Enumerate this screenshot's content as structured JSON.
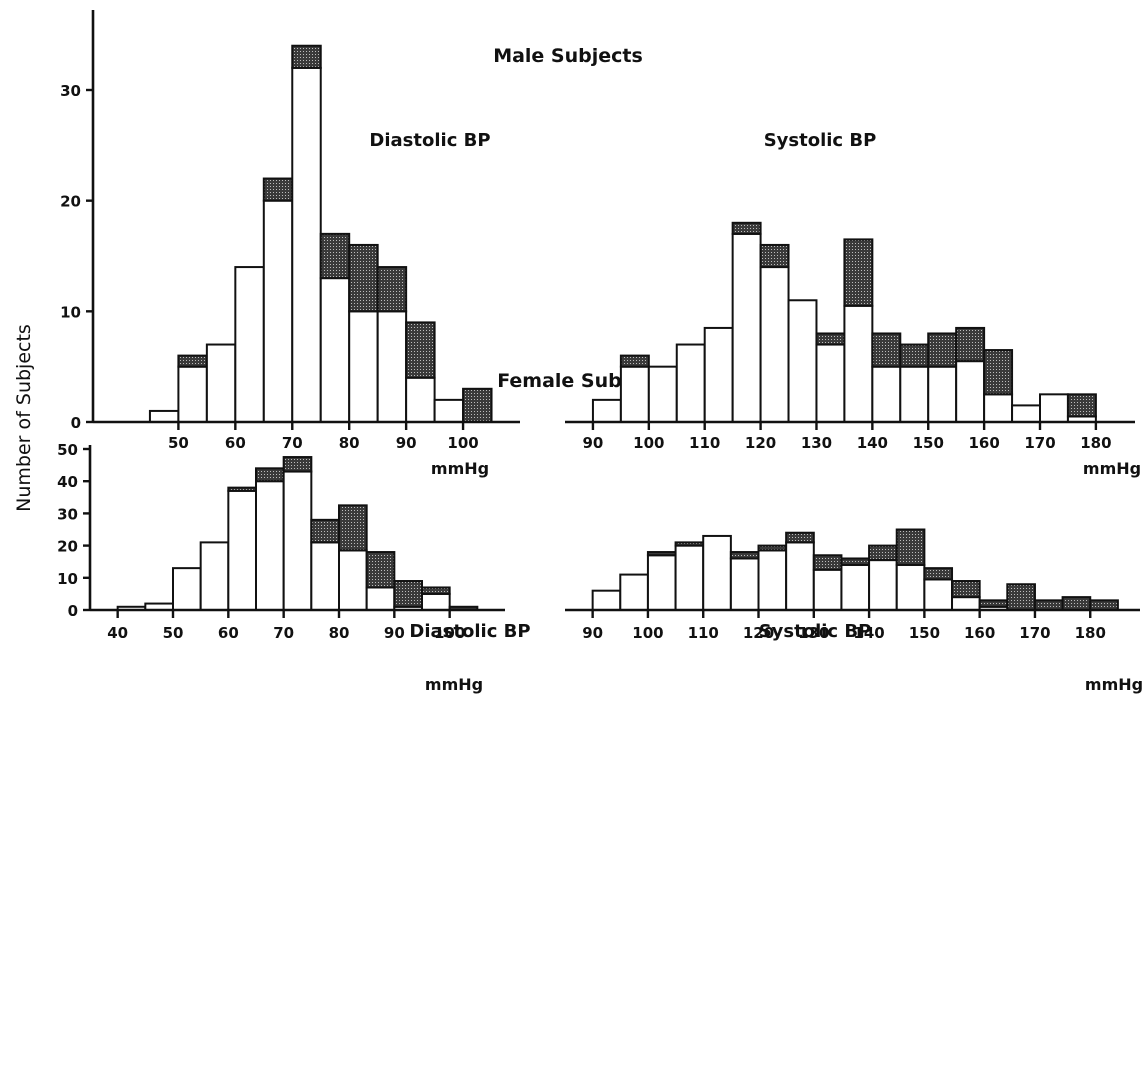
{
  "y_axis_label": "Number of Subjects",
  "colors": {
    "ink": "#111111",
    "bar_fill": "#ffffff",
    "shade": "#4a4a4a"
  },
  "chart_data": [
    {
      "type": "bar",
      "group_title": "Male Subjects",
      "title": "Diastolic BP",
      "xunit": "mmHg",
      "bin_width": 5,
      "xlim": [
        35,
        110
      ],
      "xticks": [
        50,
        60,
        70,
        80,
        90,
        100
      ],
      "ylim": [
        0,
        35
      ],
      "yticks": [
        0,
        10,
        20,
        30
      ],
      "bins": [
        45,
        50,
        55,
        60,
        65,
        70,
        75,
        80,
        85,
        90,
        95,
        100
      ],
      "white": [
        1,
        5,
        7,
        14,
        20,
        32,
        13,
        10,
        10,
        4,
        2,
        0
      ],
      "shaded": [
        0,
        1,
        0,
        0,
        2,
        2,
        4,
        6,
        4,
        5,
        0,
        3
      ]
    },
    {
      "type": "bar",
      "group_title": "Male Subjects",
      "title": "Systolic BP",
      "xunit": "mmHg",
      "bin_width": 5,
      "xlim": [
        85,
        187
      ],
      "xticks": [
        90,
        100,
        110,
        120,
        130,
        140,
        150,
        160,
        170,
        180
      ],
      "ylim": [
        0,
        35
      ],
      "yticks": [],
      "bins": [
        90,
        95,
        100,
        105,
        110,
        115,
        120,
        125,
        130,
        135,
        140,
        145,
        150,
        155,
        160,
        165,
        170,
        175
      ],
      "white": [
        2,
        5,
        5,
        7,
        8.5,
        17,
        14,
        11,
        7,
        10.5,
        5,
        5,
        5,
        5.5,
        2.5,
        1.5,
        2.5,
        0.5
      ],
      "shaded": [
        0,
        1,
        0,
        0,
        0,
        1,
        2,
        0,
        1,
        6,
        3,
        2,
        3,
        3,
        4,
        0,
        0,
        2
      ]
    },
    {
      "type": "bar",
      "group_title": "Female Subjects",
      "title": "Diastolic BP",
      "xunit": "mmHg",
      "bin_width": 5,
      "xlim": [
        35,
        110
      ],
      "xticks": [
        40,
        50,
        60,
        70,
        80,
        90,
        100
      ],
      "ylim": [
        0,
        50
      ],
      "yticks": [
        0,
        10,
        20,
        30,
        40,
        50
      ],
      "bins": [
        40,
        45,
        50,
        55,
        60,
        65,
        70,
        75,
        80,
        85,
        90,
        95,
        100
      ],
      "white": [
        1,
        2,
        13,
        21,
        37,
        40,
        43,
        21,
        18.5,
        7,
        1,
        5,
        0
      ],
      "shaded": [
        0,
        0,
        0,
        0,
        1,
        4,
        4.5,
        7,
        14,
        11,
        8,
        2,
        1
      ]
    },
    {
      "type": "bar",
      "group_title": "Female Subjects",
      "title": "Systolic BP",
      "xunit": "mmHg",
      "bin_width": 5,
      "xlim": [
        85,
        189
      ],
      "xticks": [
        90,
        100,
        110,
        120,
        130,
        140,
        150,
        160,
        170,
        180
      ],
      "ylim": [
        0,
        50
      ],
      "yticks": [],
      "bins": [
        90,
        95,
        100,
        105,
        110,
        115,
        120,
        125,
        130,
        135,
        140,
        145,
        150,
        155,
        160,
        165,
        170,
        175,
        180
      ],
      "white": [
        6,
        11,
        17,
        20,
        23,
        16,
        18.5,
        21,
        12.5,
        14,
        15.5,
        14,
        9.5,
        4,
        1,
        0,
        0,
        0,
        0
      ],
      "shaded": [
        0,
        0,
        1,
        1,
        0,
        2,
        1.5,
        3,
        4.5,
        2,
        4.5,
        11,
        3.5,
        5,
        2,
        8,
        3,
        4,
        3
      ]
    }
  ]
}
